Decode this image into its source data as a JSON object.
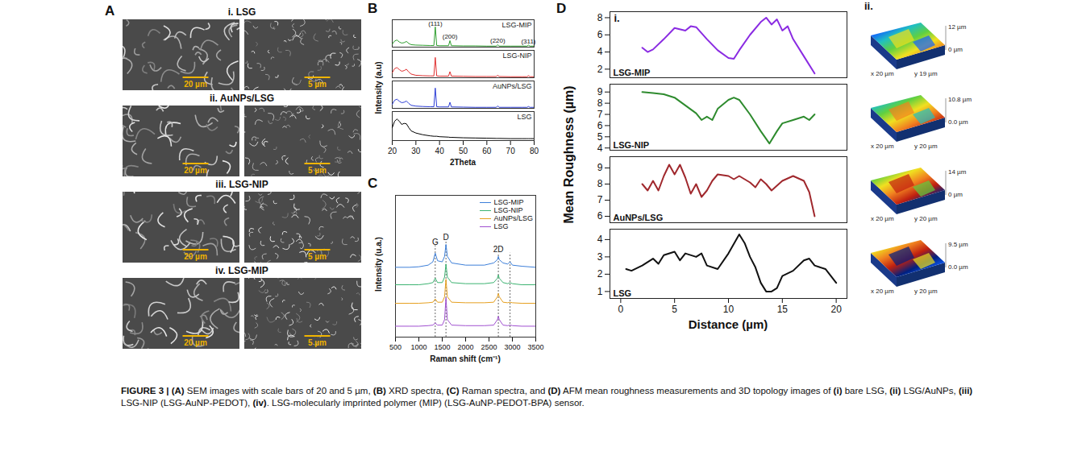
{
  "figure_label": "FIGURE 3 |",
  "caption": "(A) SEM images with scale bars of 20 and 5 µm, (B) XRD spectra, (C) Raman spectra, and (D) AFM mean roughness measurements and 3D topology images of (i) bare LSG, (ii) LSG/AuNPs, (iii) LSG-NIP (LSG-AuNP-PEDOT), (iv). LSG-molecularly imprinted polymer (MIP) (LSG-AuNP-PEDOT-BPA) sensor.",
  "sem": {
    "panel": "A",
    "rows": [
      {
        "title": "i. LSG",
        "scale_bars": [
          "20 µm",
          "5 µm"
        ]
      },
      {
        "title": "ii. AuNPs/LSG",
        "scale_bars": [
          "20 µm",
          "5 µm"
        ]
      },
      {
        "title": "iii. LSG-NIP",
        "scale_bars": [
          "20 µm",
          "5 µm"
        ]
      },
      {
        "title": "iv. LSG-MIP",
        "scale_bars": [
          "20 µm",
          "5 µm"
        ]
      }
    ]
  },
  "chart_data": [
    {
      "panel": "B",
      "type": "line",
      "x_label": "2Theta",
      "y_label": "Intensity (a.u)",
      "xlim": [
        20,
        80
      ],
      "xticks": [
        20,
        30,
        40,
        50,
        60,
        70,
        80
      ],
      "ylim": [
        0,
        1.35
      ],
      "yticks": [],
      "tick_labels": "x",
      "x": [
        20,
        21,
        22,
        23,
        24,
        25,
        26,
        27,
        28,
        30,
        33,
        36,
        37.6,
        38.2,
        38.8,
        40,
        43.8,
        44.4,
        45,
        50,
        55,
        60,
        64,
        64.6,
        65.2,
        70,
        75,
        77,
        77.6,
        78.2,
        80
      ],
      "series": [
        {
          "name": "LSG-MIP",
          "color": "#2e9e2e",
          "values": [
            0.15,
            0.3,
            0.35,
            0.25,
            0.2,
            0.22,
            0.28,
            0.18,
            0.12,
            0.1,
            0.09,
            0.08,
            0.08,
            1.0,
            0.08,
            0.07,
            0.07,
            0.32,
            0.07,
            0.06,
            0.06,
            0.05,
            0.05,
            0.12,
            0.05,
            0.05,
            0.05,
            0.05,
            0.1,
            0.05,
            0.05
          ]
        },
        {
          "name": "LSG-NIP",
          "color": "#e03030",
          "values": [
            0.25,
            0.45,
            0.5,
            0.4,
            0.32,
            0.35,
            0.42,
            0.28,
            0.18,
            0.12,
            0.1,
            0.09,
            0.09,
            1.0,
            0.09,
            0.08,
            0.08,
            0.3,
            0.08,
            0.07,
            0.06,
            0.06,
            0.06,
            0.13,
            0.06,
            0.05,
            0.05,
            0.05,
            0.1,
            0.05,
            0.05
          ]
        },
        {
          "name": "AuNPs/LSG",
          "color": "#2d3ed6",
          "values": [
            0.2,
            0.4,
            0.45,
            0.35,
            0.28,
            0.3,
            0.36,
            0.24,
            0.15,
            0.11,
            0.09,
            0.08,
            0.08,
            1.0,
            0.08,
            0.07,
            0.07,
            0.3,
            0.07,
            0.06,
            0.05,
            0.05,
            0.05,
            0.12,
            0.05,
            0.05,
            0.05,
            0.05,
            0.09,
            0.05,
            0.05
          ]
        },
        {
          "name": "LSG",
          "color": "#000000",
          "values": [
            0.6,
            0.9,
            1.0,
            0.9,
            0.75,
            0.8,
            0.78,
            0.6,
            0.45,
            0.35,
            0.27,
            0.22,
            0.2,
            0.2,
            0.2,
            0.18,
            0.16,
            0.15,
            0.15,
            0.13,
            0.12,
            0.11,
            0.1,
            0.1,
            0.1,
            0.09,
            0.09,
            0.09,
            0.09,
            0.09,
            0.09
          ]
        }
      ],
      "annotations": [
        {
          "x": 38.2,
          "y": 1.04,
          "text": "(111)"
        },
        {
          "x": 44.4,
          "y": 0.4,
          "text": "(200)"
        },
        {
          "x": 64.6,
          "y": 0.2,
          "text": "(220)"
        },
        {
          "x": 77.6,
          "y": 0.18,
          "text": "(311)"
        }
      ]
    },
    {
      "panel": "C",
      "type": "line",
      "x_label": "Raman shift (cm⁻¹)",
      "y_label": "Intensity (u.a.)",
      "xlim": [
        500,
        3500
      ],
      "xticks": [
        500,
        1000,
        1500,
        2000,
        2500,
        3000,
        3500
      ],
      "ylim": [
        0,
        13
      ],
      "yticks": [],
      "tick_labels": "x",
      "legend": "top-right",
      "x": [
        500,
        800,
        1000,
        1200,
        1300,
        1350,
        1400,
        1500,
        1550,
        1580,
        1610,
        1700,
        2000,
        2400,
        2600,
        2680,
        2700,
        2720,
        2800,
        2900,
        2950,
        3000,
        3200,
        3500
      ],
      "series": [
        {
          "name": "LSG-MIP",
          "color": "#3d7fd9",
          "values": [
            6.4,
            6.4,
            6.45,
            6.6,
            6.9,
            7.7,
            7.0,
            6.9,
            7.4,
            8.5,
            7.4,
            6.8,
            6.6,
            6.6,
            6.8,
            7.1,
            7.4,
            7.1,
            6.8,
            6.7,
            6.9,
            6.6,
            6.5,
            6.4
          ]
        },
        {
          "name": "LSG-NIP",
          "color": "#3cb371",
          "values": [
            4.8,
            4.8,
            4.8,
            4.9,
            5.0,
            5.4,
            5.0,
            5.0,
            5.5,
            6.7,
            5.5,
            5.0,
            4.9,
            4.9,
            5.0,
            5.4,
            5.7,
            5.4,
            5.0,
            4.9,
            5.0,
            4.9,
            4.8,
            4.8
          ]
        },
        {
          "name": "AuNPs/LSG",
          "color": "#e6a020",
          "values": [
            3.1,
            3.1,
            3.1,
            3.15,
            3.2,
            3.5,
            3.2,
            3.2,
            3.7,
            5.3,
            3.7,
            3.2,
            3.15,
            3.15,
            3.2,
            3.7,
            4.0,
            3.7,
            3.2,
            3.15,
            3.2,
            3.15,
            3.1,
            3.1
          ]
        },
        {
          "name": "LSG",
          "color": "#a050d0",
          "values": [
            1.0,
            1.0,
            1.0,
            1.05,
            1.1,
            1.3,
            1.1,
            1.1,
            1.6,
            3.6,
            1.6,
            1.1,
            1.05,
            1.05,
            1.1,
            1.6,
            1.9,
            1.6,
            1.1,
            1.05,
            1.1,
            1.05,
            1.0,
            1.0
          ]
        }
      ],
      "annotations": [
        {
          "x": 1350,
          "y": 8.4,
          "text": "G"
        },
        {
          "x": 1580,
          "y": 8.8,
          "text": "D"
        },
        {
          "x": 2700,
          "y": 7.7,
          "text": "2D"
        }
      ],
      "reference_lines": [
        {
          "x": 1350,
          "y": 8.4
        },
        {
          "x": 1580,
          "y": 8.8
        },
        {
          "x": 2700,
          "y": 7.7
        },
        {
          "x": 2950,
          "y": 7.7
        }
      ]
    },
    {
      "panel": "D",
      "type": "line",
      "title": "i.",
      "x_label": "Distance (µm)",
      "y_label": "Mean Roughness (µm)",
      "xlim": [
        -1,
        21
      ],
      "xticks": [
        0,
        5,
        10,
        15,
        20
      ],
      "tick_labels": true,
      "series": [
        {
          "name": "LSG-MIP",
          "color": "#8a2be2",
          "ylim": [
            1,
            8.7
          ],
          "yticks": [
            2,
            4,
            6,
            8
          ],
          "x": [
            2,
            2.5,
            3,
            4,
            5,
            6,
            6.5,
            7,
            7.5,
            8,
            9,
            10,
            10.5,
            11,
            12,
            13,
            13.5,
            14,
            14.5,
            15,
            15.5,
            16,
            17,
            18
          ],
          "values": [
            4.5,
            4.0,
            4.3,
            5.5,
            6.8,
            6.5,
            7.0,
            6.9,
            6.2,
            5.5,
            4.2,
            3.3,
            3.2,
            4.2,
            6.0,
            7.5,
            8.0,
            7.2,
            7.8,
            6.5,
            7.0,
            5.5,
            3.5,
            1.5
          ]
        },
        {
          "name": "LSG-NIP",
          "color": "#2e8b2e",
          "ylim": [
            3.8,
            9.7
          ],
          "yticks": [
            4,
            5,
            6,
            7,
            8,
            9
          ],
          "x": [
            2,
            3,
            4,
            5,
            6,
            7,
            7.5,
            8,
            8.5,
            9,
            10,
            10.5,
            11,
            12,
            13,
            13.8,
            14.5,
            15,
            16,
            17,
            17.5,
            18
          ],
          "values": [
            9.0,
            8.9,
            8.8,
            8.5,
            7.8,
            7.1,
            6.5,
            6.8,
            6.5,
            7.5,
            8.3,
            8.5,
            8.3,
            7.0,
            5.5,
            4.4,
            5.5,
            6.2,
            6.5,
            6.8,
            6.5,
            7.0
          ]
        },
        {
          "name": "AuNPs/LSG",
          "color": "#a0282d",
          "ylim": [
            5.6,
            9.7
          ],
          "yticks": [
            6,
            7,
            8,
            9
          ],
          "x": [
            2,
            2.5,
            3,
            3.5,
            4,
            4.5,
            5,
            5.5,
            6,
            6.5,
            7,
            7.5,
            8,
            8.5,
            9,
            10,
            10.5,
            11,
            12,
            12.5,
            13,
            13.5,
            14,
            15,
            16,
            17,
            17.5,
            18
          ],
          "values": [
            8.0,
            7.6,
            8.2,
            7.6,
            8.5,
            9.2,
            8.6,
            9.2,
            8.4,
            7.4,
            8.0,
            7.2,
            7.6,
            8.2,
            8.6,
            8.5,
            8.3,
            8.5,
            8.1,
            7.8,
            8.3,
            8.0,
            7.6,
            8.2,
            8.5,
            8.2,
            7.5,
            6.0
          ]
        },
        {
          "name": "LSG",
          "color": "#111111",
          "ylim": [
            0.6,
            4.6
          ],
          "yticks": [
            1,
            2,
            3,
            4
          ],
          "x": [
            0.5,
            1,
            2,
            3,
            3.5,
            4,
            5,
            5.5,
            6,
            7,
            7.5,
            8,
            9,
            10,
            11,
            11.5,
            12,
            12.5,
            13,
            13.5,
            14,
            14.5,
            15,
            16,
            17,
            17.5,
            18,
            19,
            20
          ],
          "values": [
            2.3,
            2.2,
            2.5,
            2.9,
            2.6,
            3.1,
            3.3,
            2.8,
            3.2,
            3.0,
            3.2,
            2.5,
            2.3,
            3.2,
            4.3,
            3.8,
            3.0,
            2.4,
            1.5,
            1.0,
            1.0,
            1.2,
            1.9,
            2.2,
            2.8,
            2.9,
            2.5,
            2.3,
            1.5
          ]
        }
      ]
    }
  ],
  "topology": {
    "label": "ii.",
    "images": [
      {
        "name": "LSG-MIP",
        "z_max": "12 µm",
        "z_min": "0 µm",
        "x_extent": "x 20 µm",
        "y_extent": "y 19 µm"
      },
      {
        "name": "LSG-NIP",
        "z_max": "10.8 µm",
        "z_min": "0.0 µm",
        "x_extent": "x 20 µm",
        "y_extent": "y 20 µm"
      },
      {
        "name": "AuNPs/LSG",
        "z_max": "14 µm",
        "z_min": "0 µm",
        "x_extent": "x 20 µm",
        "y_extent": "y 20 µm"
      },
      {
        "name": "LSG",
        "z_max": "9.5 µm",
        "z_min": "0.0 µm",
        "x_extent": "x 20 µm",
        "y_extent": "y 20 µm"
      }
    ]
  }
}
